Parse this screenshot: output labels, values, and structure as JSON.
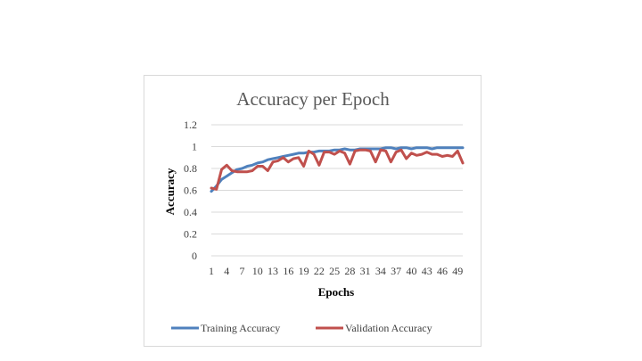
{
  "chart_data": {
    "type": "line",
    "title": "Accuracy per Epoch",
    "xlabel": "Epochs",
    "ylabel": "Accuracy",
    "ylim": [
      0,
      1.2
    ],
    "yticks": [
      "0",
      "0.2",
      "0.4",
      "0.6",
      "0.8",
      "1",
      "1.2"
    ],
    "yticks_values": [
      0,
      0.2,
      0.4,
      0.6,
      0.8,
      1.0,
      1.2
    ],
    "x": [
      1,
      2,
      3,
      4,
      5,
      6,
      7,
      8,
      9,
      10,
      11,
      12,
      13,
      14,
      15,
      16,
      17,
      18,
      19,
      20,
      21,
      22,
      23,
      24,
      25,
      26,
      27,
      28,
      29,
      30,
      31,
      32,
      33,
      34,
      35,
      36,
      37,
      38,
      39,
      40,
      41,
      42,
      43,
      44,
      45,
      46,
      47,
      48,
      49,
      50
    ],
    "xticks": [
      "1",
      "4",
      "7",
      "10",
      "13",
      "16",
      "19",
      "22",
      "25",
      "28",
      "31",
      "34",
      "37",
      "40",
      "43",
      "46",
      "49"
    ],
    "xticks_values": [
      1,
      4,
      7,
      10,
      13,
      16,
      19,
      22,
      25,
      28,
      31,
      34,
      37,
      40,
      43,
      46,
      49
    ],
    "grid": true,
    "legend_position": "bottom",
    "series": [
      {
        "name": "Training Accuracy",
        "color": "#4f81bd",
        "values": [
          0.59,
          0.64,
          0.7,
          0.73,
          0.76,
          0.79,
          0.8,
          0.82,
          0.83,
          0.85,
          0.86,
          0.88,
          0.89,
          0.9,
          0.91,
          0.92,
          0.93,
          0.94,
          0.94,
          0.95,
          0.95,
          0.96,
          0.96,
          0.96,
          0.97,
          0.97,
          0.98,
          0.97,
          0.97,
          0.98,
          0.98,
          0.98,
          0.98,
          0.98,
          0.99,
          0.99,
          0.98,
          0.99,
          0.99,
          0.98,
          0.99,
          0.99,
          0.99,
          0.98,
          0.99,
          0.99,
          0.99,
          0.99,
          0.99,
          0.99
        ]
      },
      {
        "name": "Validation Accuracy",
        "color": "#c0504d",
        "values": [
          0.62,
          0.61,
          0.79,
          0.83,
          0.78,
          0.77,
          0.77,
          0.77,
          0.78,
          0.82,
          0.82,
          0.78,
          0.86,
          0.87,
          0.9,
          0.86,
          0.89,
          0.9,
          0.82,
          0.96,
          0.93,
          0.83,
          0.95,
          0.95,
          0.93,
          0.96,
          0.94,
          0.84,
          0.96,
          0.97,
          0.97,
          0.96,
          0.86,
          0.97,
          0.96,
          0.86,
          0.95,
          0.97,
          0.89,
          0.94,
          0.92,
          0.93,
          0.95,
          0.93,
          0.93,
          0.91,
          0.92,
          0.91,
          0.96,
          0.85
        ]
      }
    ]
  }
}
